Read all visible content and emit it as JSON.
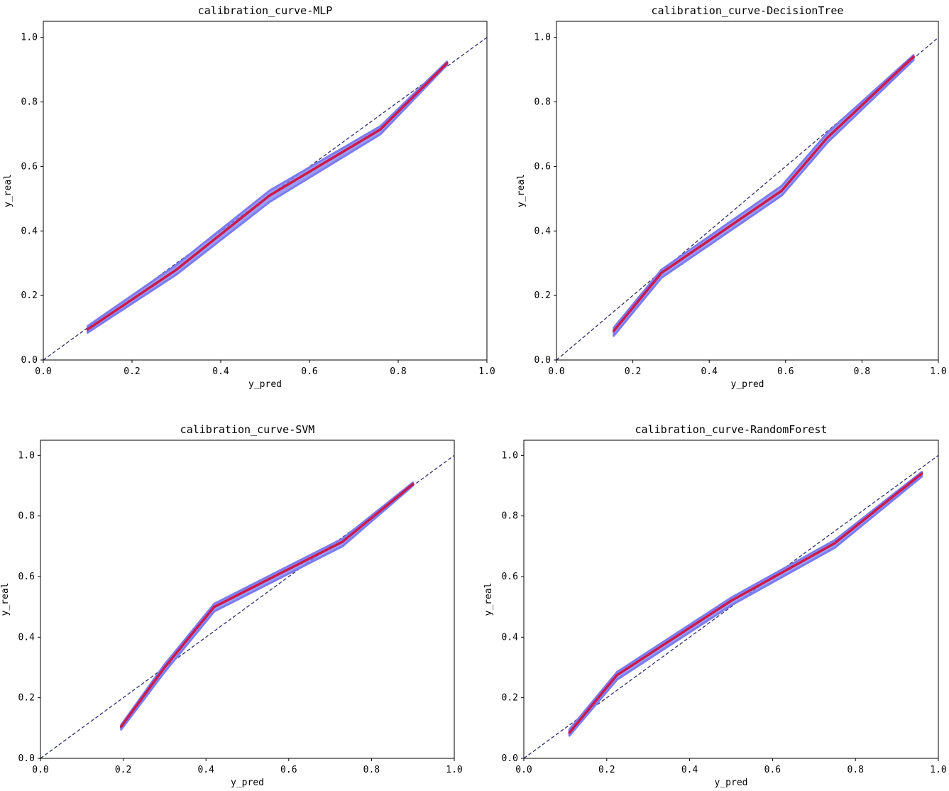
{
  "chart_data": [
    {
      "type": "line",
      "title": "calibration_curve-MLP",
      "xlabel": "y_pred",
      "ylabel": "y_real",
      "xlim": [
        0,
        1
      ],
      "ylim": [
        0,
        1.05
      ],
      "xticks": [
        "0.0",
        "0.2",
        "0.4",
        "0.6",
        "0.8",
        "1.0"
      ],
      "yticks": [
        "0.0",
        "0.2",
        "0.4",
        "0.6",
        "0.8",
        "1.0"
      ],
      "x": [
        0.1,
        0.3,
        0.51,
        0.76,
        0.91
      ],
      "y": [
        0.095,
        0.28,
        0.51,
        0.715,
        0.92
      ],
      "band_lower": [
        0.085,
        0.265,
        0.49,
        0.7,
        0.915
      ],
      "band_upper": [
        0.105,
        0.295,
        0.525,
        0.725,
        0.925
      ],
      "reference_line": [
        [
          0,
          0
        ],
        [
          1,
          1
        ]
      ]
    },
    {
      "type": "line",
      "title": "calibration_curve-DecisionTree",
      "xlabel": "y_pred",
      "ylabel": "y_real",
      "xlim": [
        0,
        1
      ],
      "ylim": [
        0,
        1.05
      ],
      "xticks": [
        "0.0",
        "0.2",
        "0.4",
        "0.6",
        "0.8",
        "1.0"
      ],
      "yticks": [
        "0.0",
        "0.2",
        "0.4",
        "0.6",
        "0.8",
        "1.0"
      ],
      "x": [
        0.15,
        0.275,
        0.59,
        0.71,
        0.935
      ],
      "y": [
        0.09,
        0.27,
        0.525,
        0.69,
        0.94
      ],
      "band_lower": [
        0.075,
        0.255,
        0.51,
        0.675,
        0.93
      ],
      "band_upper": [
        0.1,
        0.28,
        0.54,
        0.705,
        0.945
      ],
      "reference_line": [
        [
          0,
          0
        ],
        [
          1,
          1
        ]
      ]
    },
    {
      "type": "line",
      "title": "calibration_curve-SVM",
      "xlabel": "y_pred",
      "ylabel": "y_real",
      "xlim": [
        0,
        1
      ],
      "ylim": [
        0,
        1.05
      ],
      "xticks": [
        "0.0",
        "0.2",
        "0.4",
        "0.6",
        "0.8",
        "1.0"
      ],
      "yticks": [
        "0.0",
        "0.2",
        "0.4",
        "0.6",
        "0.8",
        "1.0"
      ],
      "x": [
        0.195,
        0.3,
        0.42,
        0.73,
        0.9
      ],
      "y": [
        0.105,
        0.3,
        0.5,
        0.715,
        0.905
      ],
      "band_lower": [
        0.095,
        0.285,
        0.485,
        0.7,
        0.9
      ],
      "band_upper": [
        0.11,
        0.31,
        0.51,
        0.725,
        0.91
      ],
      "reference_line": [
        [
          0,
          0
        ],
        [
          1,
          1
        ]
      ]
    },
    {
      "type": "line",
      "title": "calibration_curve-RandomForest",
      "xlabel": "y_pred",
      "ylabel": "y_real",
      "xlim": [
        0,
        1
      ],
      "ylim": [
        0,
        1.05
      ],
      "xticks": [
        "0.0",
        "0.2",
        "0.4",
        "0.6",
        "0.8",
        "1.0"
      ],
      "yticks": [
        "0.0",
        "0.2",
        "0.4",
        "0.6",
        "0.8",
        "1.0"
      ],
      "x": [
        0.11,
        0.225,
        0.5,
        0.75,
        0.96
      ],
      "y": [
        0.085,
        0.275,
        0.52,
        0.71,
        0.94
      ],
      "band_lower": [
        0.075,
        0.26,
        0.505,
        0.695,
        0.93
      ],
      "band_upper": [
        0.095,
        0.285,
        0.53,
        0.72,
        0.945
      ],
      "reference_line": [
        [
          0,
          0
        ],
        [
          1,
          1
        ]
      ]
    }
  ],
  "colors": {
    "curve": "#cc1a4a",
    "band": "#7b7bf0",
    "reference": "#2f2f6e",
    "axis": "#000000",
    "background": "#ffffff"
  }
}
